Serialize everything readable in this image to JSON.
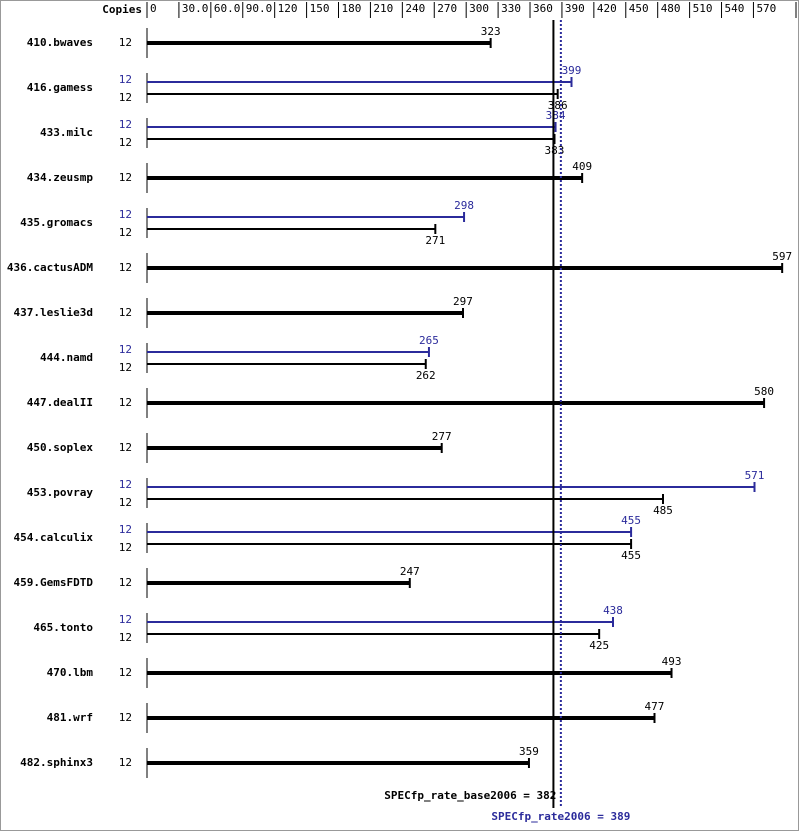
{
  "chart_data": {
    "type": "bar",
    "copies_header": "Copies",
    "categories": [
      "410.bwaves",
      "416.gamess",
      "433.milc",
      "434.zeusmp",
      "435.gromacs",
      "436.cactusADM",
      "437.leslie3d",
      "444.namd",
      "447.dealII",
      "450.soplex",
      "453.povray",
      "454.calculix",
      "459.GemsFDTD",
      "465.tonto",
      "470.lbm",
      "481.wrf",
      "482.sphinx3"
    ],
    "base_copies": [
      12,
      12,
      12,
      12,
      12,
      12,
      12,
      12,
      12,
      12,
      12,
      12,
      12,
      12,
      12,
      12,
      12
    ],
    "base_values": [
      323,
      386,
      383,
      409,
      271,
      597,
      297,
      262,
      580,
      277,
      485,
      455,
      247,
      425,
      493,
      477,
      359
    ],
    "peak_copies": [
      null,
      12,
      12,
      null,
      12,
      null,
      null,
      12,
      null,
      null,
      12,
      12,
      null,
      12,
      null,
      null,
      null
    ],
    "peak_values": [
      null,
      399,
      384,
      null,
      298,
      null,
      null,
      265,
      null,
      null,
      571,
      455,
      null,
      438,
      null,
      null,
      null
    ],
    "base_color": "#000000",
    "peak_color": "#2b2b9b",
    "xlim": [
      0,
      610
    ],
    "xticks": [
      0,
      {
        "value": 30,
        "label": "30.0"
      },
      {
        "value": 60,
        "label": "60.0"
      },
      {
        "value": 90,
        "label": "90.0"
      },
      120,
      150,
      180,
      210,
      240,
      270,
      300,
      330,
      360,
      390,
      420,
      450,
      480,
      510,
      540,
      570,
      610
    ],
    "base_ref_label": "SPECfp_rate_base2006 = 382",
    "base_ref_value": 382,
    "peak_ref_label": "SPECfp_rate2006 = 389",
    "peak_ref_value": 389
  }
}
